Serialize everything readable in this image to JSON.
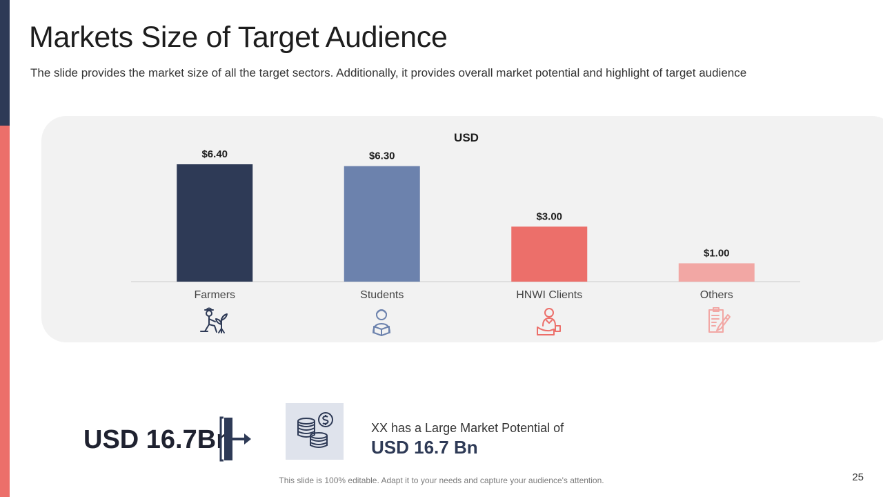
{
  "slide": {
    "title": "Markets Size of Target Audience",
    "subtitle": "The slide provides the market size of all the target sectors. Additionally, it provides overall market potential and highlight of target audience",
    "page_number": "25",
    "footer_note": "This slide is 100% editable. Adapt it to your needs and capture your audience's attention."
  },
  "chart_data": {
    "type": "bar",
    "title": "USD",
    "categories": [
      "Farmers",
      "Students",
      "HNWI Clients",
      "Others"
    ],
    "values": [
      6.4,
      6.3,
      3.0,
      1.0
    ],
    "data_labels": [
      "$6.40",
      "$6.30",
      "$3.00",
      "$1.00"
    ],
    "bar_colors": [
      "#2e3a56",
      "#6c82ad",
      "#ec6f6a",
      "#f2a7a4"
    ],
    "ylim": [
      0,
      6.4
    ],
    "xlabel": "",
    "ylabel": "",
    "grid": false,
    "legend": "none"
  },
  "icons": [
    {
      "name": "farmer-icon",
      "color": "#2e3a56"
    },
    {
      "name": "student-icon",
      "color": "#6c82ad"
    },
    {
      "name": "hnwi-client-icon",
      "color": "#ec6f6a"
    },
    {
      "name": "document-edit-icon",
      "color": "#f2a7a4"
    }
  ],
  "summary": {
    "big_value": "USD 16.7Bn",
    "potential_text": "XX has a Large Market Potential of",
    "potential_value": "USD 16.7 Bn",
    "coins_icon": "coins-dollar-icon"
  },
  "colors": {
    "navy": "#2e3a56",
    "coral": "#ec6f6a",
    "panel": "#f2f2f2"
  }
}
